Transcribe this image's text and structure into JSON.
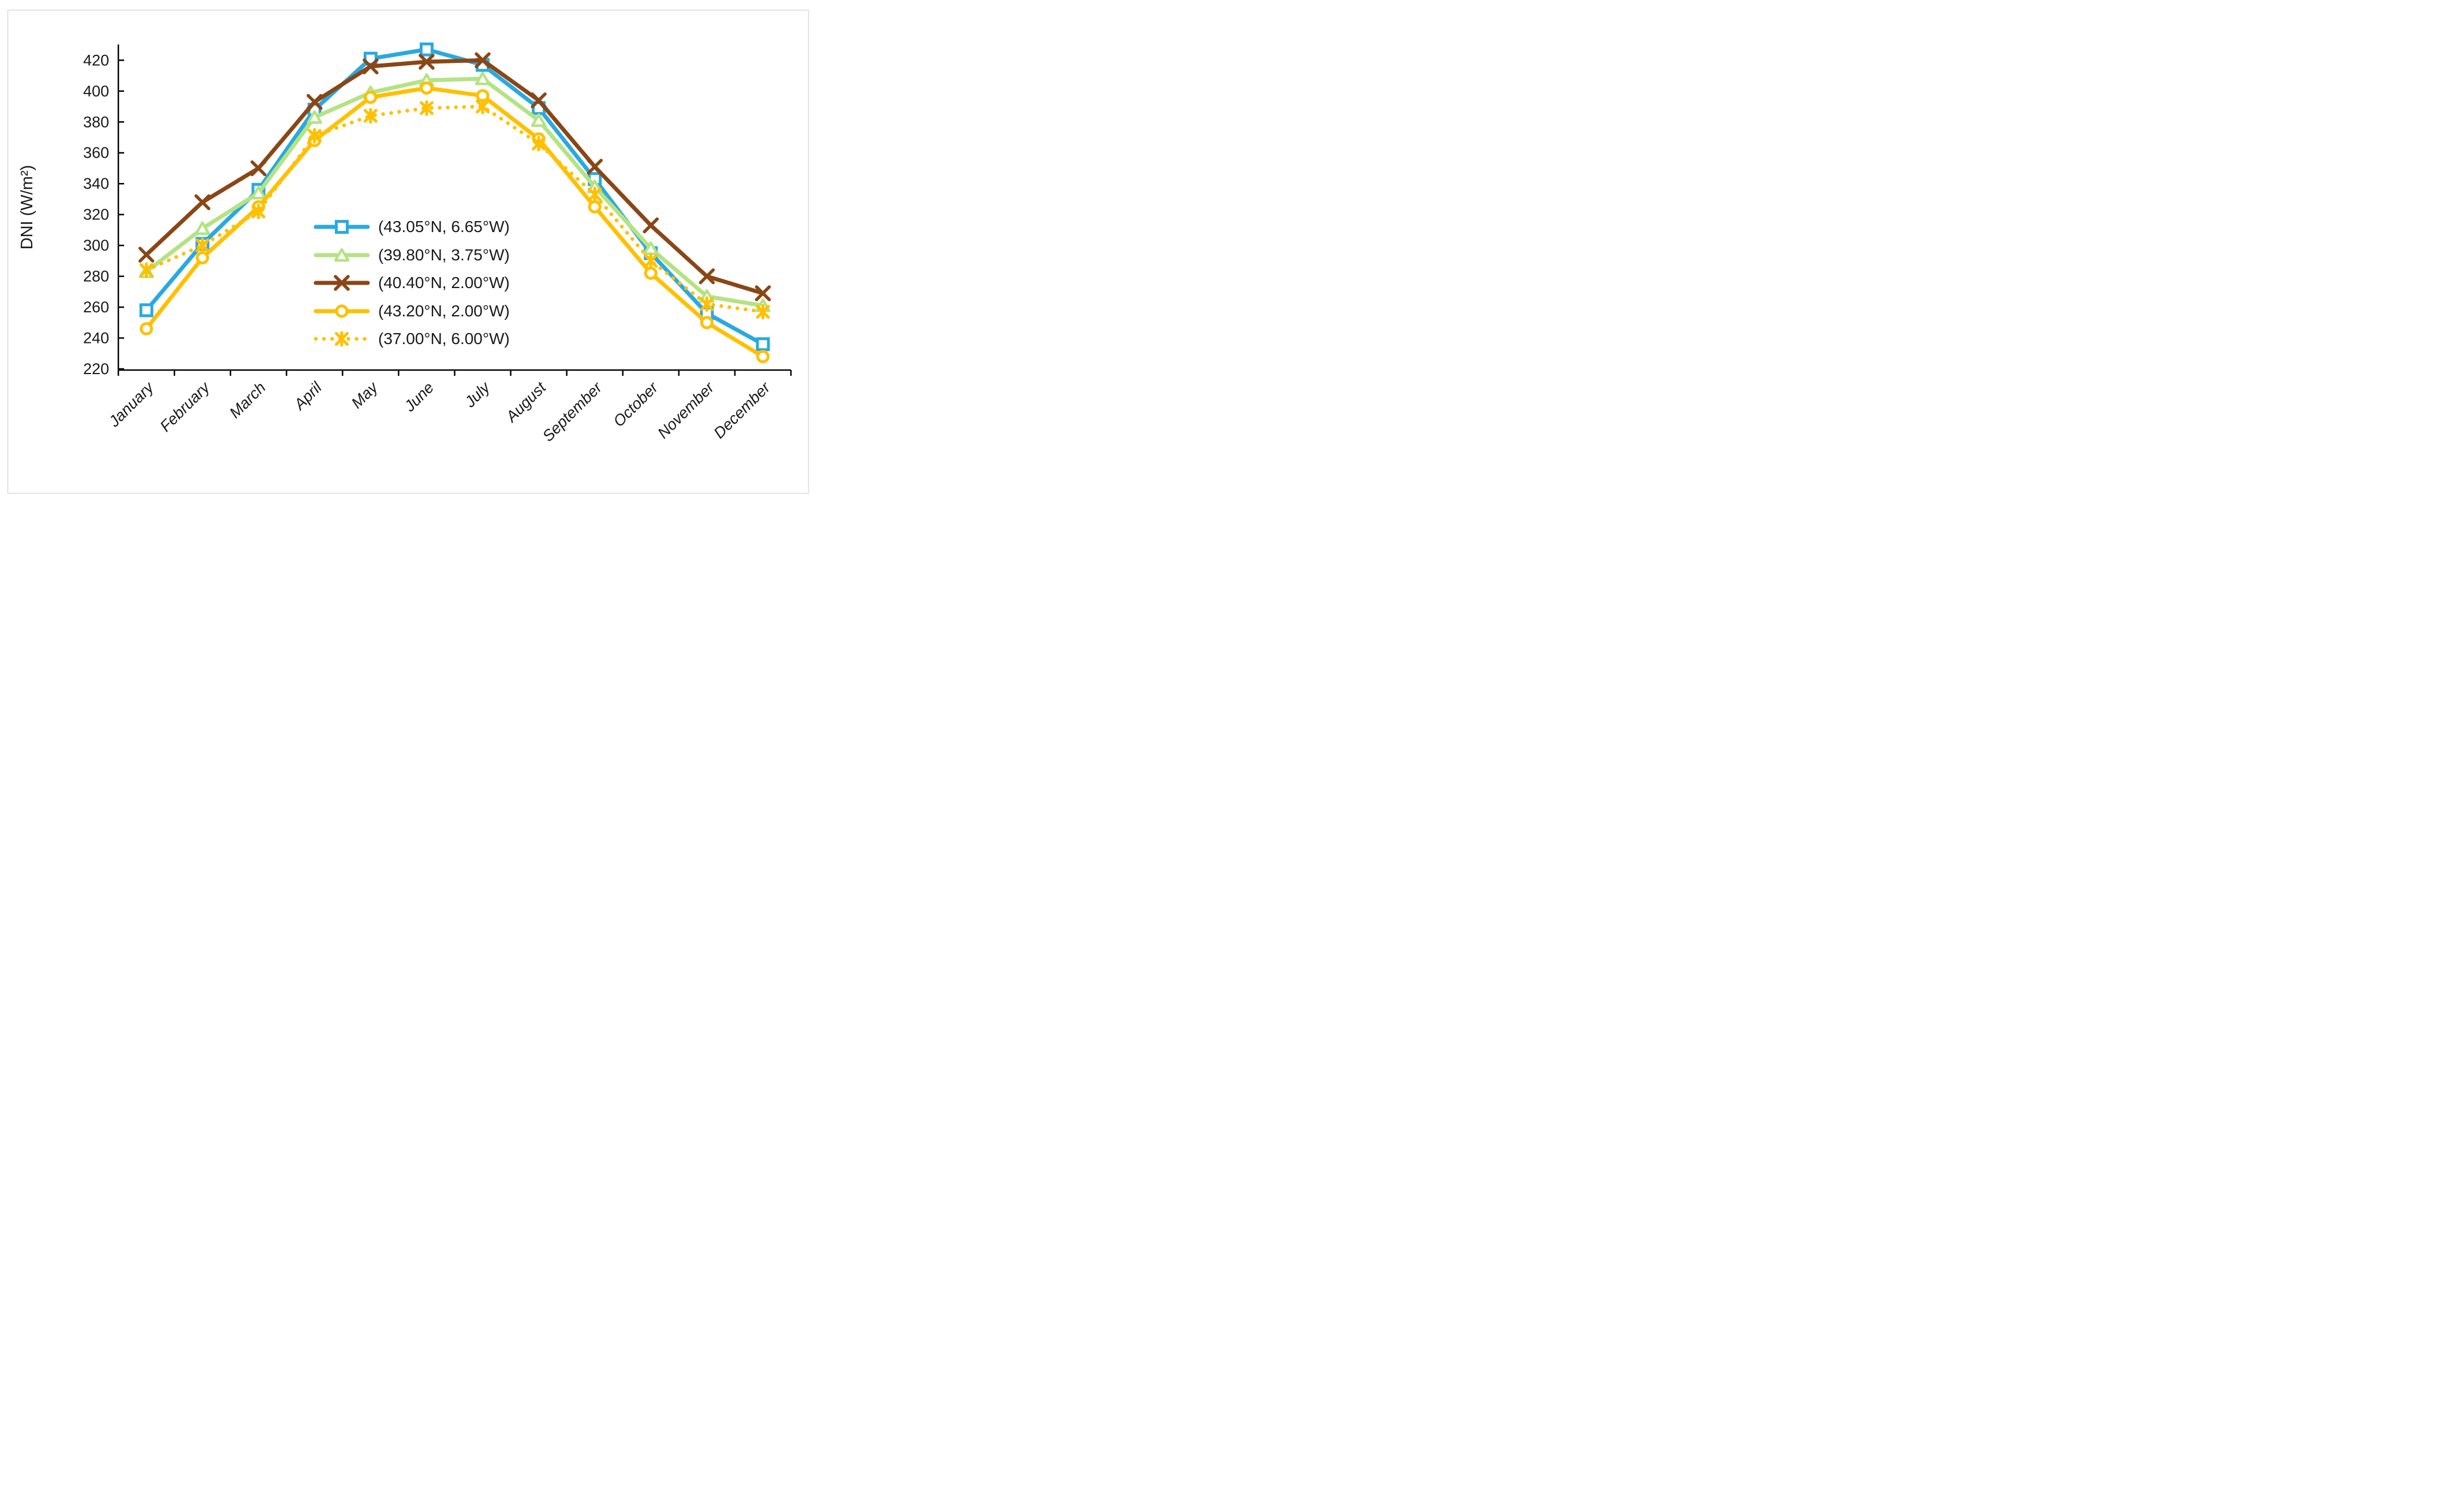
{
  "chart_data": {
    "type": "line",
    "title": "",
    "xlabel": "",
    "ylabel": "DNI (W/m²)",
    "ylim": [
      220,
      430
    ],
    "yticks": {
      "start": 220,
      "step": 20,
      "end": 420
    },
    "grid": false,
    "legend_position": "center-inside",
    "categories": [
      "January",
      "February",
      "March",
      "April",
      "May",
      "June",
      "July",
      "August",
      "September",
      "October",
      "November",
      "December"
    ],
    "series": [
      {
        "name": "(43.05°N, 6.65°W)",
        "color": "#29A9E1",
        "marker": "square",
        "line_style": "solid",
        "values": [
          258,
          301,
          336,
          388,
          421,
          427,
          417,
          389,
          343,
          295,
          256,
          236
        ]
      },
      {
        "name": "(39.80°N, 3.75°W)",
        "color": "#B4E383",
        "marker": "triangle",
        "line_style": "solid",
        "values": [
          283,
          311,
          334,
          383,
          399,
          407,
          408,
          381,
          338,
          298,
          267,
          261
        ]
      },
      {
        "name": "(40.40°N, 2.00°W)",
        "color": "#8A4616",
        "marker": "x",
        "line_style": "solid",
        "values": [
          294,
          328,
          350,
          393,
          416,
          419,
          420,
          394,
          351,
          313,
          280,
          269
        ]
      },
      {
        "name": "(43.20°N, 2.00°W)",
        "color": "#FFC000",
        "marker": "circle",
        "line_style": "solid",
        "values": [
          246,
          292,
          325,
          368,
          396,
          402,
          397,
          369,
          325,
          282,
          250,
          228
        ]
      },
      {
        "name": "(37.00°N, 6.00°W)",
        "color": "#FFC000",
        "marker": "asterisk",
        "line_style": "dotted",
        "values": [
          284,
          300,
          322,
          371,
          384,
          389,
          390,
          366,
          333,
          290,
          262,
          257
        ]
      }
    ],
    "frame_color": "#d9d9d9",
    "axis_color": "#000000",
    "text_color": "#1a1a1a"
  }
}
